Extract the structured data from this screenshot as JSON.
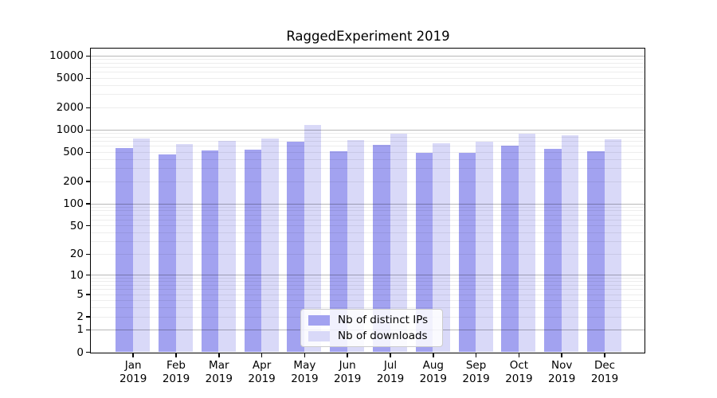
{
  "chart_data": {
    "type": "bar",
    "title": "RaggedExperiment 2019",
    "categories": [
      "Jan",
      "Feb",
      "Mar",
      "Apr",
      "May",
      "Jun",
      "Jul",
      "Aug",
      "Sep",
      "Oct",
      "Nov",
      "Dec"
    ],
    "category_year": "2019",
    "series": [
      {
        "name": "Nb of distinct IPs",
        "color": "#a2a2f0",
        "values": [
          560,
          460,
          525,
          540,
          695,
          510,
          620,
          490,
          480,
          600,
          550,
          510
        ]
      },
      {
        "name": "Nb of downloads",
        "color": "#d9d9f8",
        "values": [
          755,
          630,
          700,
          760,
          1170,
          725,
          870,
          650,
          690,
          890,
          845,
          745
        ]
      }
    ],
    "yscale": "log1p",
    "y_ticks": [
      0,
      1,
      2,
      5,
      10,
      20,
      50,
      100,
      200,
      500,
      1000,
      2000,
      5000,
      10000
    ],
    "ylim": [
      0,
      12450
    ],
    "xlabel": "",
    "ylabel": "",
    "grid": "horizontal-major-and-minor",
    "legend_position": "lower-center-inside"
  },
  "colors": {
    "major_grid": "rgba(0,0,0,0.28)",
    "minor_grid": "rgba(0,0,0,0.07)",
    "spine": "#000000",
    "background": "#ffffff"
  }
}
